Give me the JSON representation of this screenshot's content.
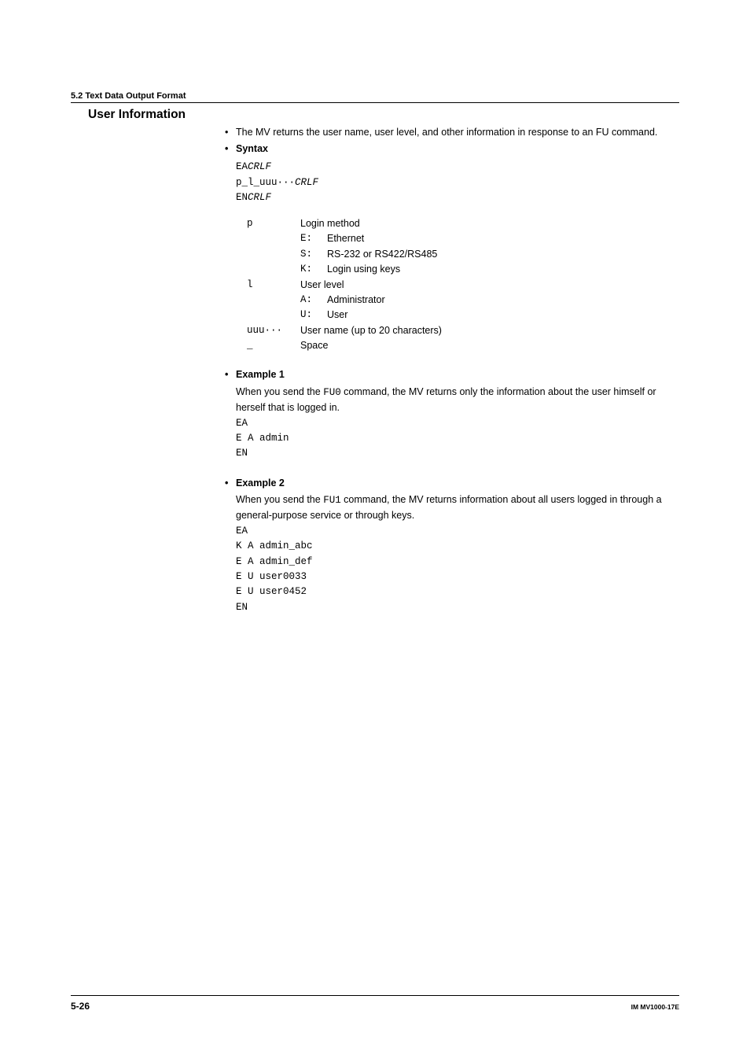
{
  "section_header": "5.2  Text Data Output Format",
  "heading": "User Information",
  "intro_bullet": "•",
  "intro_text": "The MV returns the user name, user level, and other information in response to an FU command.",
  "syntax": {
    "bullet": "•",
    "label": "Syntax",
    "line1_a": "EA",
    "line1_b": "CRLF",
    "line2_a": "p_l_uuu···",
    "line2_b": "CRLF",
    "line3_a": "EN",
    "line3_b": "CRLF"
  },
  "defs": {
    "p_key": "p",
    "p_val": "Login method",
    "p_E_key": "E:",
    "p_E_val": "Ethernet",
    "p_S_key": "S:",
    "p_S_val": "RS-232 or RS422/RS485",
    "p_K_key": "K:",
    "p_K_val": "Login using keys",
    "l_key": "l",
    "l_val": "User level",
    "l_A_key": "A:",
    "l_A_val": "Administrator",
    "l_U_key": "U:",
    "l_U_val": "User",
    "uuu_key": "uuu···",
    "uuu_val": "User name (up to 20 characters)",
    "sp_key": "_",
    "sp_val": "Space"
  },
  "example1": {
    "bullet": "•",
    "label": "Example 1",
    "text_a": "When you send the ",
    "cmd": "FU0",
    "text_b": " command, the MV returns only the information about the user himself or herself that is logged in.",
    "l1": "EA",
    "l2": "E A admin",
    "l3": "EN"
  },
  "example2": {
    "bullet": "•",
    "label": "Example 2",
    "text_a": "When you send the ",
    "cmd": "FU1",
    "text_b": " command, the MV returns information about all users logged in through a general-purpose service or through keys.",
    "l1": "EA",
    "l2": "K A admin_abc",
    "l3": "E A admin_def",
    "l4": "E U user0033",
    "l5": "E U user0452",
    "l6": "EN"
  },
  "footer": {
    "page": "5-26",
    "docid": "IM MV1000-17E"
  }
}
